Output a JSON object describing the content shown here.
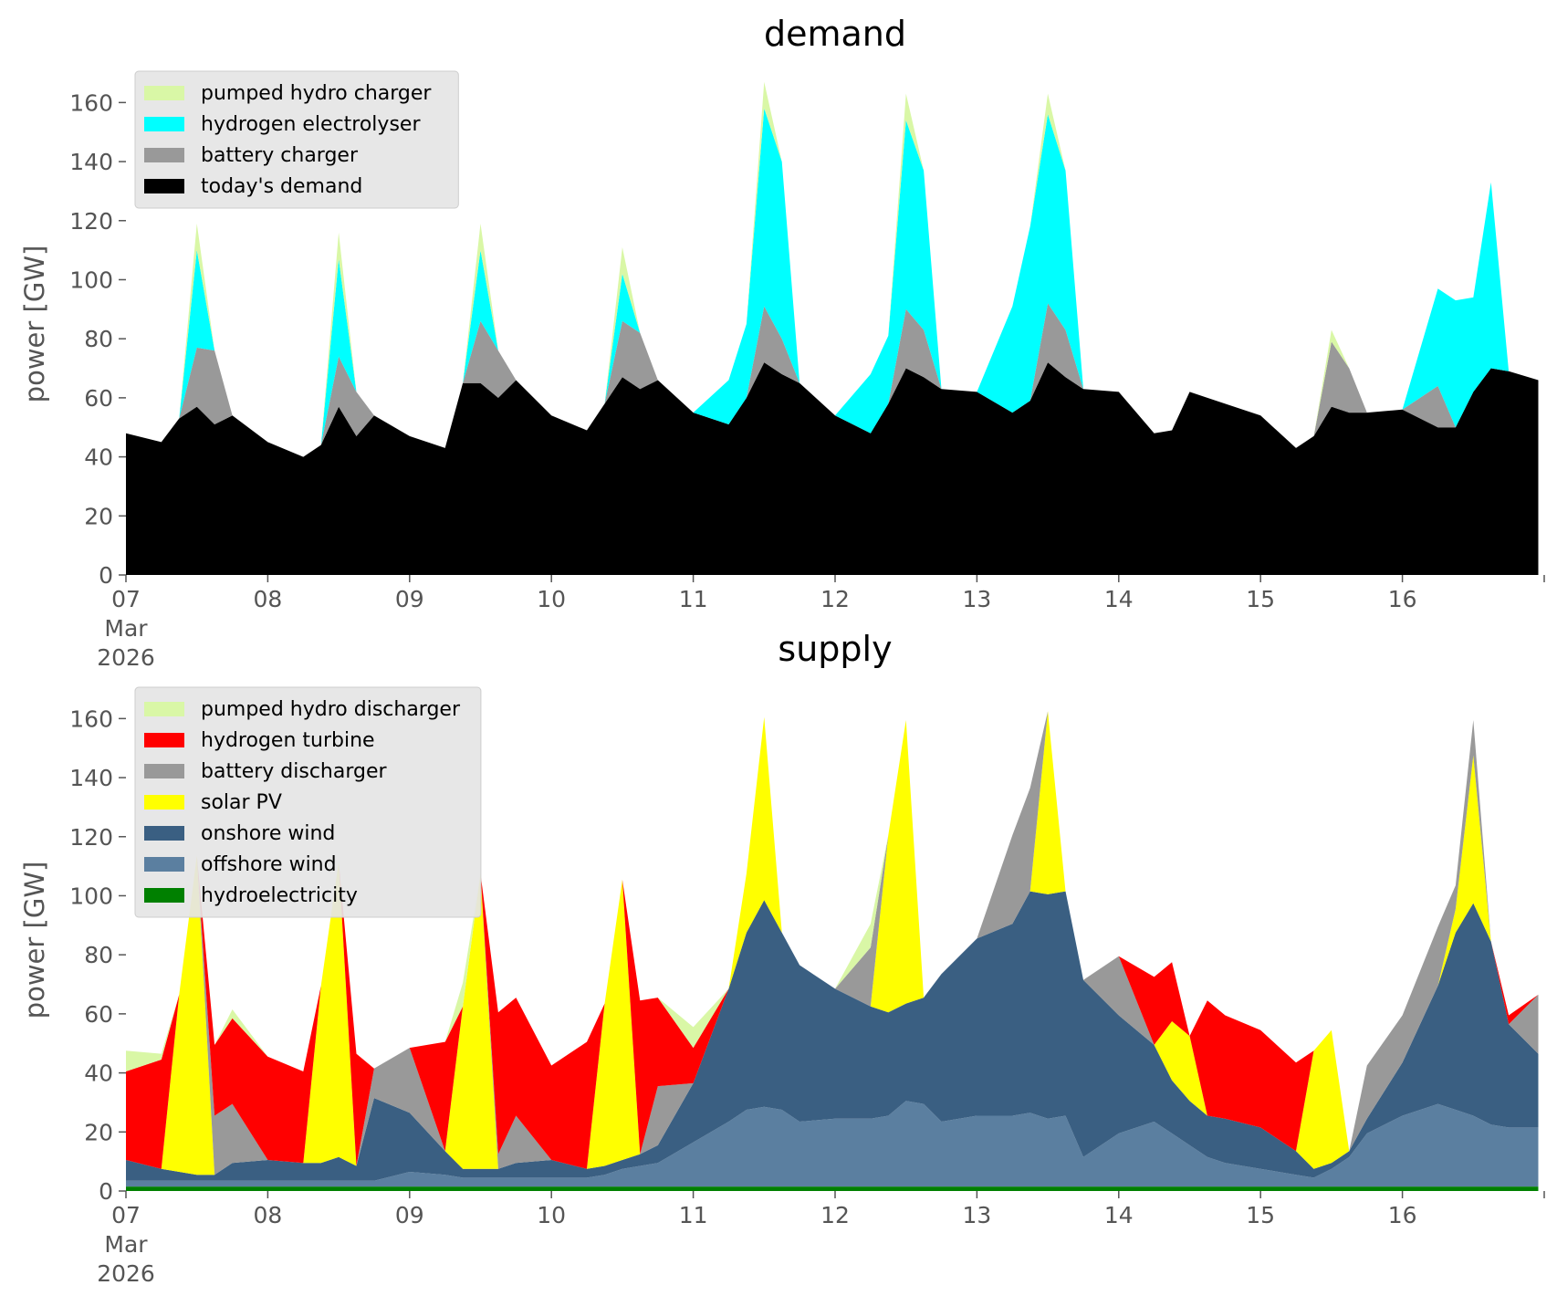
{
  "chart_data": [
    {
      "type": "area",
      "stacked": true,
      "title": "demand",
      "ylabel": "power [GW]",
      "xlabel": "",
      "ylim": [
        0,
        170
      ],
      "yticks": [
        0,
        20,
        40,
        60,
        80,
        100,
        120,
        140,
        160
      ],
      "x_range_days": [
        "2026-03-07",
        "2026-03-17"
      ],
      "xtick_labels": [
        "07\nMar\n2026",
        "08",
        "09",
        "10",
        "11",
        "12",
        "13",
        "14",
        "15",
        "16"
      ],
      "grid": false,
      "legend_position": "top-left",
      "legend_order": [
        "pumped hydro charger",
        "hydrogen electrolyser",
        "battery charger",
        "today's demand"
      ],
      "colors": {
        "today's demand": "#000000",
        "battery charger": "#999999",
        "hydrogen electrolyser": "#00ffff",
        "pumped hydro charger": "#d9f7a6"
      },
      "x": [
        "2026-03-07 00:00",
        "2026-03-07 06:00",
        "2026-03-07 09:00",
        "2026-03-07 12:00",
        "2026-03-07 15:00",
        "2026-03-07 18:00",
        "2026-03-08 00:00",
        "2026-03-08 06:00",
        "2026-03-08 09:00",
        "2026-03-08 12:00",
        "2026-03-08 15:00",
        "2026-03-08 18:00",
        "2026-03-09 00:00",
        "2026-03-09 06:00",
        "2026-03-09 09:00",
        "2026-03-09 12:00",
        "2026-03-09 15:00",
        "2026-03-09 18:00",
        "2026-03-10 00:00",
        "2026-03-10 06:00",
        "2026-03-10 09:00",
        "2026-03-10 12:00",
        "2026-03-10 15:00",
        "2026-03-10 18:00",
        "2026-03-11 00:00",
        "2026-03-11 06:00",
        "2026-03-11 09:00",
        "2026-03-11 12:00",
        "2026-03-11 15:00",
        "2026-03-11 18:00",
        "2026-03-12 00:00",
        "2026-03-12 06:00",
        "2026-03-12 09:00",
        "2026-03-12 12:00",
        "2026-03-12 15:00",
        "2026-03-12 18:00",
        "2026-03-13 00:00",
        "2026-03-13 06:00",
        "2026-03-13 09:00",
        "2026-03-13 12:00",
        "2026-03-13 15:00",
        "2026-03-13 18:00",
        "2026-03-14 00:00",
        "2026-03-14 06:00",
        "2026-03-14 09:00",
        "2026-03-14 12:00",
        "2026-03-14 15:00",
        "2026-03-14 18:00",
        "2026-03-15 00:00",
        "2026-03-15 06:00",
        "2026-03-15 09:00",
        "2026-03-15 12:00",
        "2026-03-15 15:00",
        "2026-03-15 18:00",
        "2026-03-16 00:00",
        "2026-03-16 06:00",
        "2026-03-16 09:00",
        "2026-03-16 12:00",
        "2026-03-16 15:00",
        "2026-03-16 18:00",
        "2026-03-16 23:00"
      ],
      "series": [
        {
          "name": "today's demand",
          "values": [
            48,
            45,
            53,
            57,
            51,
            54,
            45,
            40,
            44,
            57,
            47,
            54,
            47,
            43,
            65,
            65,
            60,
            66,
            54,
            49,
            58,
            67,
            63,
            66,
            55,
            51,
            60,
            72,
            68,
            65,
            54,
            48,
            58,
            70,
            67,
            63,
            62,
            55,
            59,
            72,
            67,
            63,
            62,
            48,
            49,
            62,
            60,
            58,
            54,
            43,
            47,
            57,
            55,
            55,
            56,
            50,
            50,
            62,
            70,
            69,
            66
          ]
        },
        {
          "name": "battery charger",
          "values": [
            0,
            0,
            0,
            20,
            25,
            0,
            0,
            0,
            0,
            17,
            15,
            0,
            0,
            0,
            0,
            21,
            16,
            0,
            0,
            0,
            0,
            19,
            19,
            0,
            0,
            0,
            0,
            19,
            12,
            0,
            0,
            0,
            0,
            20,
            16,
            0,
            0,
            0,
            0,
            20,
            16,
            0,
            0,
            0,
            0,
            0,
            0,
            0,
            0,
            0,
            0,
            22,
            15,
            0,
            0,
            14,
            0,
            0,
            0,
            0,
            0
          ]
        },
        {
          "name": "hydrogen electrolyser",
          "values": [
            0,
            0,
            0,
            33,
            0,
            0,
            0,
            0,
            0,
            33,
            0,
            0,
            0,
            0,
            0,
            24,
            0,
            0,
            0,
            0,
            0,
            16,
            0,
            0,
            0,
            15,
            25,
            67,
            60,
            0,
            0,
            20,
            23,
            64,
            54,
            0,
            0,
            36,
            59,
            64,
            54,
            0,
            0,
            0,
            0,
            0,
            0,
            0,
            0,
            0,
            0,
            0,
            0,
            0,
            0,
            33,
            43,
            32,
            63,
            0,
            0
          ]
        },
        {
          "name": "pumped hydro charger",
          "values": [
            0,
            0,
            0,
            9,
            0,
            0,
            0,
            0,
            0,
            9,
            0,
            0,
            0,
            0,
            0,
            9,
            0,
            0,
            0,
            0,
            0,
            9,
            0,
            0,
            0,
            0,
            0,
            9,
            0,
            0,
            0,
            0,
            0,
            9,
            0,
            0,
            0,
            0,
            0,
            7,
            0,
            0,
            0,
            0,
            0,
            0,
            0,
            0,
            0,
            0,
            0,
            4,
            0,
            0,
            0,
            0,
            0,
            0,
            0,
            0,
            0
          ]
        }
      ]
    },
    {
      "type": "area",
      "stacked": true,
      "title": "supply",
      "ylabel": "power [GW]",
      "xlabel": "",
      "ylim": [
        0,
        170
      ],
      "yticks": [
        0,
        20,
        40,
        60,
        80,
        100,
        120,
        140,
        160
      ],
      "x_range_days": [
        "2026-03-07",
        "2026-03-17"
      ],
      "xtick_labels": [
        "07\nMar\n2026",
        "08",
        "09",
        "10",
        "11",
        "12",
        "13",
        "14",
        "15",
        "16"
      ],
      "grid": false,
      "legend_position": "top-left",
      "legend_order": [
        "pumped hydro discharger",
        "hydrogen turbine",
        "battery discharger",
        "solar PV",
        "onshore wind",
        "offshore wind",
        "hydroelectricity"
      ],
      "colors": {
        "hydroelectricity": "#008000",
        "offshore wind": "#5b7fa0",
        "onshore wind": "#3a5f82",
        "solar PV": "#ffff00",
        "battery discharger": "#999999",
        "hydrogen turbine": "#ff0000",
        "pumped hydro discharger": "#d9f7a6"
      },
      "x": [
        "2026-03-07 00:00",
        "2026-03-07 06:00",
        "2026-03-07 09:00",
        "2026-03-07 12:00",
        "2026-03-07 15:00",
        "2026-03-07 18:00",
        "2026-03-08 00:00",
        "2026-03-08 06:00",
        "2026-03-08 09:00",
        "2026-03-08 12:00",
        "2026-03-08 15:00",
        "2026-03-08 18:00",
        "2026-03-09 00:00",
        "2026-03-09 06:00",
        "2026-03-09 09:00",
        "2026-03-09 12:00",
        "2026-03-09 15:00",
        "2026-03-09 18:00",
        "2026-03-10 00:00",
        "2026-03-10 06:00",
        "2026-03-10 09:00",
        "2026-03-10 12:00",
        "2026-03-10 15:00",
        "2026-03-10 18:00",
        "2026-03-11 00:00",
        "2026-03-11 06:00",
        "2026-03-11 09:00",
        "2026-03-11 12:00",
        "2026-03-11 15:00",
        "2026-03-11 18:00",
        "2026-03-12 00:00",
        "2026-03-12 06:00",
        "2026-03-12 09:00",
        "2026-03-12 12:00",
        "2026-03-12 15:00",
        "2026-03-12 18:00",
        "2026-03-13 00:00",
        "2026-03-13 06:00",
        "2026-03-13 09:00",
        "2026-03-13 12:00",
        "2026-03-13 15:00",
        "2026-03-13 18:00",
        "2026-03-14 00:00",
        "2026-03-14 06:00",
        "2026-03-14 09:00",
        "2026-03-14 12:00",
        "2026-03-14 15:00",
        "2026-03-14 18:00",
        "2026-03-15 00:00",
        "2026-03-15 06:00",
        "2026-03-15 09:00",
        "2026-03-15 12:00",
        "2026-03-15 15:00",
        "2026-03-15 18:00",
        "2026-03-16 00:00",
        "2026-03-16 06:00",
        "2026-03-16 09:00",
        "2026-03-16 12:00",
        "2026-03-16 15:00",
        "2026-03-16 18:00",
        "2026-03-16 23:00"
      ],
      "series": [
        {
          "name": "hydroelectricity",
          "values": [
            1.5,
            1.5,
            1.5,
            1.5,
            1.5,
            1.5,
            1.5,
            1.5,
            1.5,
            1.5,
            1.5,
            1.5,
            1.5,
            1.5,
            1.5,
            1.5,
            1.5,
            1.5,
            1.5,
            1.5,
            1.5,
            1.5,
            1.5,
            1.5,
            1.5,
            1.5,
            1.5,
            1.5,
            1.5,
            1.5,
            1.5,
            1.5,
            1.5,
            1.5,
            1.5,
            1.5,
            1.5,
            1.5,
            1.5,
            1.5,
            1.5,
            1.5,
            1.5,
            1.5,
            1.5,
            1.5,
            1.5,
            1.5,
            1.5,
            1.5,
            1.5,
            1.5,
            1.5,
            1.5,
            1.5,
            1.5,
            1.5,
            1.5,
            1.5,
            1.5,
            1.5
          ]
        },
        {
          "name": "offshore wind",
          "values": [
            2,
            2,
            2,
            2,
            2,
            2,
            2,
            2,
            2,
            2,
            2,
            2,
            5,
            4,
            3,
            3,
            3,
            3,
            3,
            3,
            4,
            6,
            7,
            8,
            15,
            22,
            26,
            27,
            26,
            22,
            23,
            23,
            24,
            29,
            28,
            22,
            24,
            24,
            25,
            23,
            24,
            10,
            18,
            22,
            18,
            14,
            10,
            8,
            6,
            4,
            3,
            6,
            10,
            18,
            24,
            28,
            26,
            24,
            21,
            20,
            20
          ]
        },
        {
          "name": "onshore wind",
          "values": [
            7,
            4,
            3,
            2,
            2,
            6,
            7,
            6,
            6,
            8,
            5,
            28,
            20,
            8,
            3,
            3,
            3,
            5,
            6,
            3,
            3,
            3,
            4,
            6,
            20,
            45,
            60,
            70,
            60,
            53,
            44,
            38,
            35,
            33,
            36,
            50,
            60,
            65,
            75,
            76,
            76,
            60,
            40,
            26,
            18,
            15,
            14,
            15,
            14,
            8,
            3,
            2,
            2,
            5,
            18,
            40,
            60,
            72,
            62,
            35,
            25
          ]
        },
        {
          "name": "solar PV",
          "values": [
            0,
            0,
            60,
            108,
            0,
            0,
            0,
            0,
            60,
            100,
            0,
            0,
            0,
            0,
            55,
            100,
            0,
            0,
            0,
            0,
            55,
            95,
            0,
            0,
            0,
            0,
            20,
            62,
            0,
            0,
            0,
            0,
            60,
            96,
            0,
            0,
            0,
            0,
            0,
            62,
            0,
            0,
            0,
            0,
            20,
            22,
            0,
            0,
            0,
            0,
            40,
            45,
            0,
            0,
            0,
            0,
            8,
            50,
            0,
            0,
            0
          ]
        },
        {
          "name": "battery discharger",
          "values": [
            0,
            0,
            0,
            0,
            20,
            20,
            0,
            0,
            0,
            0,
            0,
            10,
            22,
            0,
            0,
            0,
            5,
            16,
            0,
            0,
            0,
            0,
            0,
            20,
            0,
            0,
            0,
            0,
            0,
            0,
            0,
            20,
            0,
            0,
            0,
            0,
            0,
            30,
            35,
            0,
            0,
            0,
            20,
            0,
            0,
            0,
            0,
            0,
            0,
            0,
            0,
            0,
            0,
            18,
            16,
            20,
            8,
            12,
            0,
            0,
            20
          ]
        },
        {
          "name": "hydrogen turbine",
          "values": [
            30,
            37,
            0,
            0,
            24,
            29,
            35,
            31,
            0,
            0,
            38,
            0,
            0,
            37,
            0,
            0,
            48,
            40,
            32,
            43,
            0,
            0,
            52,
            30,
            12,
            0,
            0,
            0,
            0,
            0,
            0,
            0,
            0,
            0,
            0,
            0,
            0,
            0,
            0,
            0,
            0,
            0,
            0,
            23,
            20,
            0,
            39,
            35,
            33,
            30,
            0,
            0,
            0,
            0,
            0,
            0,
            0,
            0,
            0,
            3,
            0
          ]
        },
        {
          "name": "pumped hydro discharger",
          "values": [
            7,
            2,
            0,
            0,
            0,
            3,
            0,
            0,
            0,
            0,
            0,
            0,
            0,
            0,
            8,
            0,
            0,
            0,
            0,
            0,
            0,
            0,
            0,
            0,
            7,
            0,
            0,
            0,
            0,
            0,
            0,
            8,
            0,
            0,
            0,
            0,
            0,
            0,
            0,
            0,
            0,
            0,
            0,
            0,
            0,
            0,
            0,
            0,
            0,
            0,
            0,
            0,
            0,
            0,
            0,
            0,
            0,
            0,
            0,
            0,
            0
          ]
        }
      ]
    }
  ]
}
